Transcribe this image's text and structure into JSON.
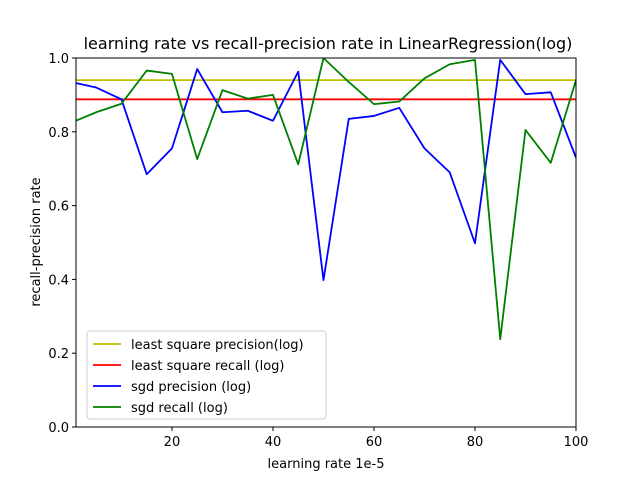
{
  "chart_data": {
    "type": "line",
    "title": "learning rate vs recall-precision rate in LinearRegression(log)",
    "xlabel": "learning rate 1e-5",
    "ylabel": "recall-precision rate",
    "xlim": [
      1,
      100
    ],
    "ylim": [
      0.0,
      1.0
    ],
    "xticks": [
      20,
      40,
      60,
      80,
      100
    ],
    "xtick_labels": [
      "20",
      "40",
      "60",
      "80",
      "100"
    ],
    "yticks": [
      0.0,
      0.2,
      0.4,
      0.6,
      0.8,
      1.0
    ],
    "ytick_labels": [
      "0.0",
      "0.2",
      "0.4",
      "0.6",
      "0.8",
      "1.0"
    ],
    "grid": false,
    "legend_position": "lower-left",
    "series": [
      {
        "name": "least square precision(log)",
        "color": "#bfbf00",
        "x": [
          1,
          100
        ],
        "y": [
          0.94,
          0.94
        ]
      },
      {
        "name": "least square recall (log)",
        "color": "#ff0000",
        "x": [
          1,
          100
        ],
        "y": [
          0.888,
          0.888
        ]
      },
      {
        "name": "sgd precision (log)",
        "color": "#0000ff",
        "x": [
          1,
          5,
          10,
          15,
          20,
          25,
          30,
          35,
          40,
          45,
          50,
          55,
          60,
          65,
          70,
          75,
          80,
          85,
          90,
          95,
          100
        ],
        "y": [
          0.932,
          0.92,
          0.888,
          0.685,
          0.755,
          0.97,
          0.853,
          0.857,
          0.83,
          0.963,
          0.398,
          0.835,
          0.843,
          0.865,
          0.755,
          0.69,
          0.498,
          0.995,
          0.902,
          0.907,
          0.73
        ]
      },
      {
        "name": "sgd recall (log)",
        "color": "#008000",
        "x": [
          1,
          5,
          10,
          15,
          20,
          25,
          30,
          35,
          40,
          45,
          50,
          55,
          60,
          65,
          70,
          75,
          80,
          85,
          90,
          95,
          100
        ],
        "y": [
          0.83,
          0.853,
          0.876,
          0.966,
          0.957,
          0.726,
          0.913,
          0.89,
          0.9,
          0.712,
          1.0,
          0.935,
          0.875,
          0.882,
          0.945,
          0.983,
          0.995,
          0.238,
          0.805,
          0.716,
          0.94
        ]
      }
    ]
  }
}
